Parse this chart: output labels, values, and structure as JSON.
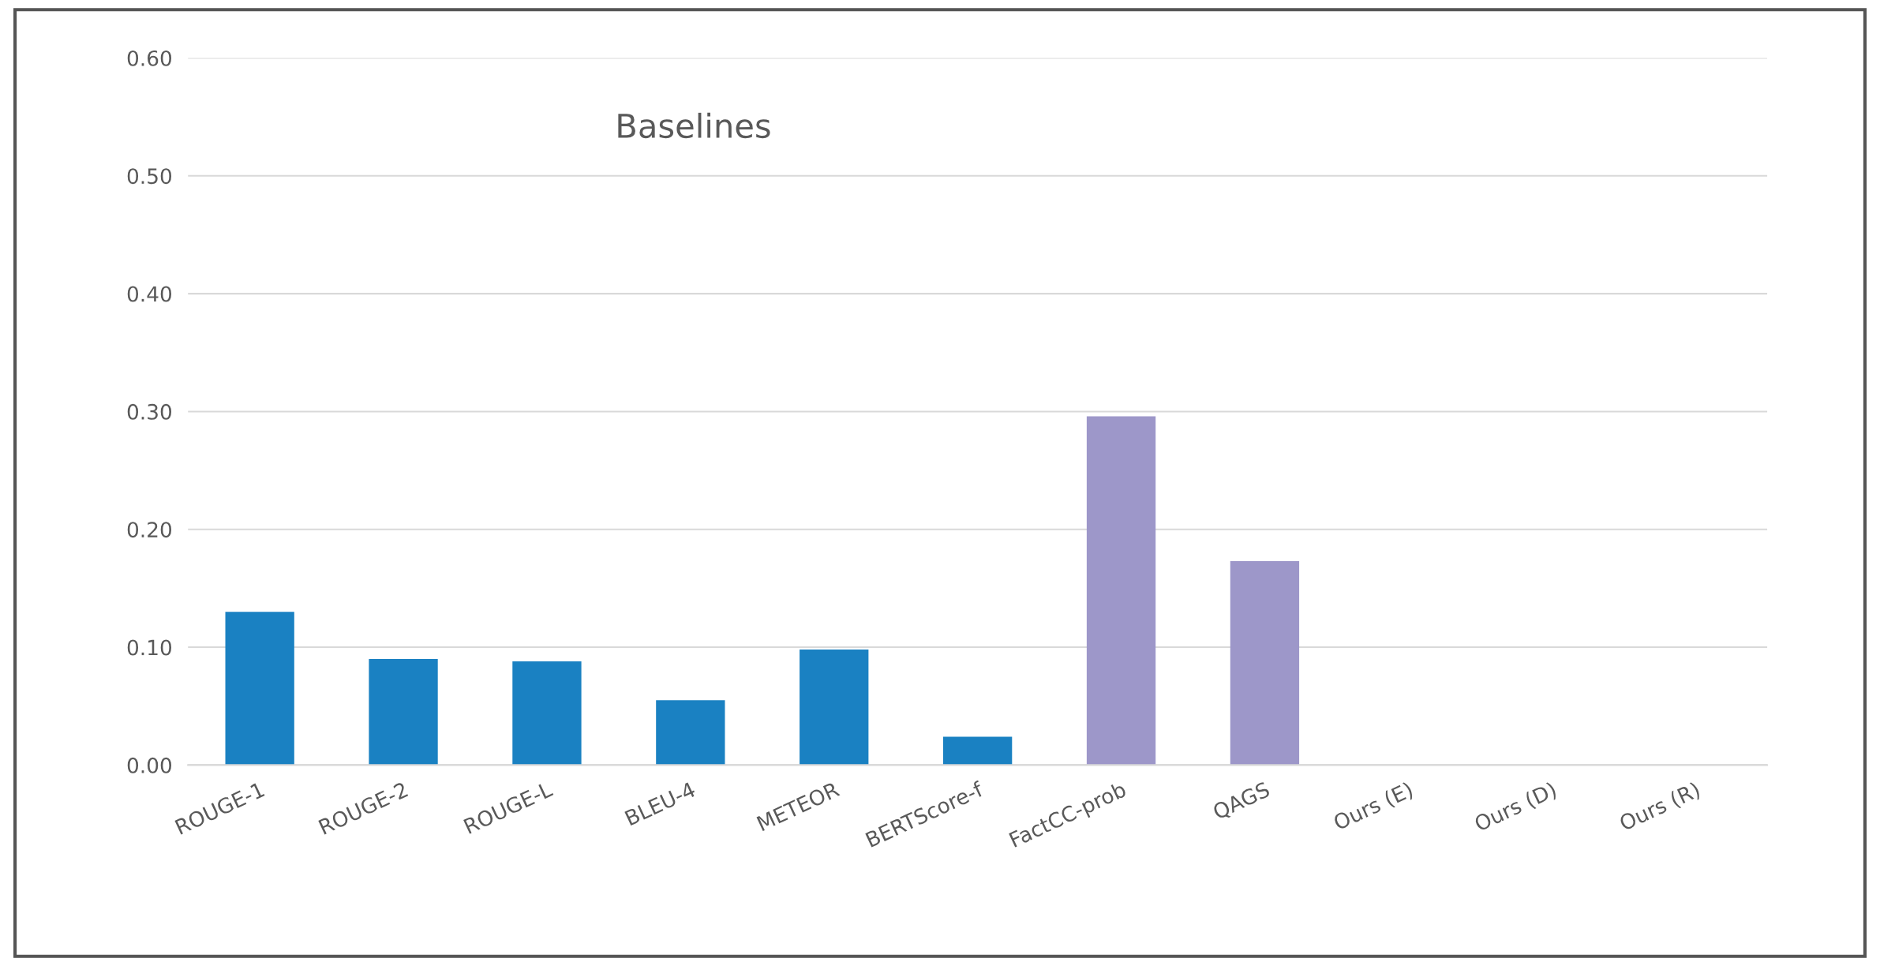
{
  "chart_data": {
    "type": "bar",
    "title": "Baselines",
    "categories": [
      "ROUGE-1",
      "ROUGE-2",
      "ROUGE-L",
      "BLEU-4",
      "METEOR",
      "BERTScore-f",
      "FactCC-prob",
      "QAGS",
      "Ours (E)",
      "Ours (D)",
      "Ours (R)"
    ],
    "values": [
      0.13,
      0.09,
      0.088,
      0.055,
      0.098,
      0.024,
      0.296,
      0.173,
      null,
      null,
      null
    ],
    "colors": [
      "#1a81c2",
      "#1a81c2",
      "#1a81c2",
      "#1a81c2",
      "#1a81c2",
      "#1a81c2",
      "#9d97c9",
      "#9d97c9",
      "#9d97c9",
      "#9d97c9",
      "#9d97c9"
    ],
    "ylim": [
      0,
      0.6
    ],
    "yticks": [
      {
        "value": 0,
        "label": "0.00"
      },
      {
        "value": 0.1,
        "label": "0.10"
      },
      {
        "value": 0.2,
        "label": "0.20"
      },
      {
        "value": 0.3,
        "label": "0.30"
      },
      {
        "value": 0.4,
        "label": "0.40"
      },
      {
        "value": 0.5,
        "label": "0.50"
      },
      {
        "value": 0.6,
        "label": "0.60"
      }
    ],
    "grid": "y"
  }
}
